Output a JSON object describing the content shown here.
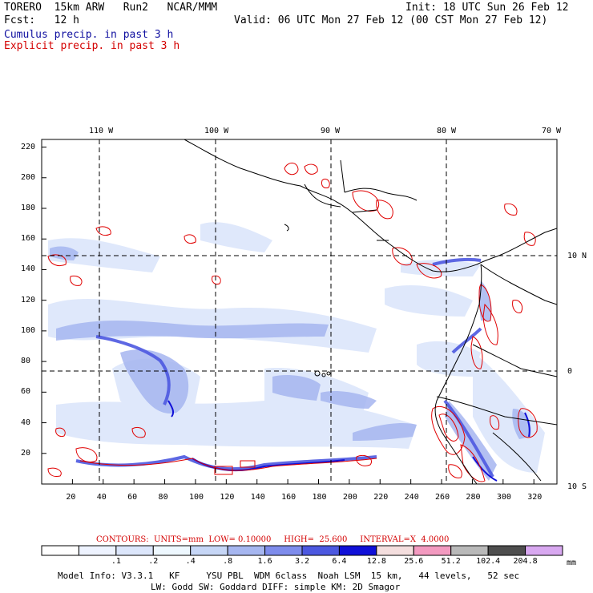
{
  "header": {
    "model": "TORERO  15km ARW   Run2   NCAR/MMM",
    "init": "Init: 18 UTC Sun 26 Feb 12",
    "fcst": "Fcst:   12 h",
    "valid": "Valid: 06 UTC Mon 27 Feb 12 (00 CST Mon 27 Feb 12)",
    "cumulus_label": "Cumulus precip. in past 3 h",
    "explicit_label": "Explicit precip. in past 3 h"
  },
  "map": {
    "lon_labels": [
      "110 W",
      "100 W",
      "90 W",
      "80 W",
      "70 W"
    ],
    "lat_labels": [
      "10 N",
      "0",
      "10 S"
    ],
    "y_ticks": [
      "220",
      "200",
      "180",
      "160",
      "140",
      "120",
      "100",
      "80",
      "60",
      "40",
      "20"
    ],
    "x_ticks": [
      "20",
      "40",
      "60",
      "80",
      "100",
      "120",
      "140",
      "160",
      "180",
      "200",
      "220",
      "240",
      "260",
      "280",
      "300",
      "320"
    ],
    "y_range": [
      0,
      225
    ],
    "x_range": [
      0,
      335
    ]
  },
  "contours": {
    "line": "CONTOURS:  UNITS=mm  LOW= 0.10000     HIGH=  25.600     INTERVAL=X  4.0000"
  },
  "colorbar": {
    "colors": [
      "#ffffff",
      "#eef3ff",
      "#dce6fb",
      "#eef8ff",
      "#c6d6f6",
      "#a6b6f0",
      "#7e8cec",
      "#4c58e0",
      "#1010d8",
      "#f4dede",
      "#f39ac0",
      "#b9b9b9",
      "#4e4e4e",
      "#d8a8f0"
    ],
    "labels": [
      ".1",
      ".2",
      ".4",
      ".8",
      "1.6",
      "3.2",
      "6.4",
      "12.8",
      "25.6",
      "51.2",
      "102.4",
      "204.8"
    ],
    "units": "mm"
  },
  "footer": {
    "line1": "Model Info: V3.3.1   KF     YSU PBL  WDM 6class  Noah LSM  15 km,   44 levels,   52 sec",
    "line2": "LW: Godd SW: Goddard DIFF: simple KM: 2D Smagor"
  }
}
